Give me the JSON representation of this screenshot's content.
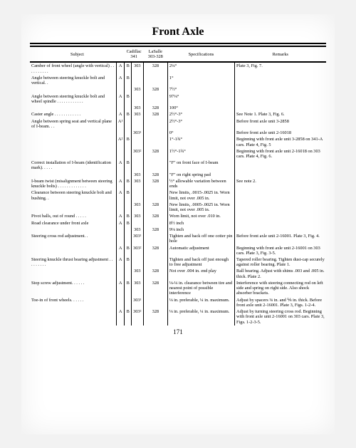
{
  "title": "Front Axle",
  "pagenum": "171",
  "columns": {
    "subject": "Subject",
    "cad": "Cadillac 341",
    "las": "LaSalle 303-328",
    "spec": "Specifications",
    "rem": "Remarks"
  },
  "rows": [
    {
      "subject": "Camber of front wheel (angle with vertical) . . . . . . . . . .",
      "ab": "A",
      "cad_a": "B",
      "cad": "303",
      "las": "328",
      "spec": "2¼°",
      "rem": "Plate 3, Fig. 7."
    },
    {
      "subject": "  Angle between steering knuckle bolt and vertical. .",
      "ab": "A",
      "cad_a": "B",
      "cad": "",
      "las": "",
      "spec": "1°",
      "rem": ""
    },
    {
      "subject": "",
      "ab": "",
      "cad_a": "",
      "cad": "303",
      "las": "328",
      "spec": "7½°",
      "rem": ""
    },
    {
      "subject": "  Angle between steering knuckle bolt and wheel spindle . . . . . . . . . . . .",
      "ab": "A",
      "cad_a": "B",
      "cad": "",
      "las": "",
      "spec": "97¼°",
      "rem": ""
    },
    {
      "subject": "",
      "ab": "",
      "cad_a": "",
      "cad": "303",
      "las": "328",
      "spec": "100°",
      "rem": ""
    },
    {
      "subject": "Caster angle . . . . . . . . . . . .",
      "ab": "A",
      "cad_a": "B",
      "cad": "303",
      "las": "328",
      "spec": "2½°-3°",
      "rem": "See Note 1.  Plate 3, Fig. 6."
    },
    {
      "subject": "  Angle between spring seat and vertical plane of I-beam. . .",
      "ab": "A¹",
      "cad_a": "",
      "cad": "",
      "las": "",
      "spec": "2½°-3°",
      "rem": "Before front axle unit 3-2858"
    },
    {
      "subject": "",
      "ab": "",
      "cad_a": "",
      "cad": "303¹",
      "las": "",
      "spec": "0°",
      "rem": "Before front axle unit 2-16018"
    },
    {
      "subject": "",
      "ab": "A²",
      "cad_a": "B",
      "cad": "",
      "las": "",
      "spec": "1°-1¾°",
      "rem": "Beginning with front axle unit 3-2858 on 341-A cars.  Plate 4, Fig. 5"
    },
    {
      "subject": "",
      "ab": "",
      "cad_a": "",
      "cad": "303²",
      "las": "328",
      "spec": "1½°-1¾°",
      "rem": "Beginning with front axle unit 2-16018 on 303 cars.  Plate 4, Fig. 6."
    },
    {
      "subject": "Correct installation of I-beam (identification mark). . . . .",
      "ab": "A",
      "cad_a": "B",
      "cad": "",
      "las": "",
      "spec": "\"F\" on front face of I-beam",
      "rem": ""
    },
    {
      "subject": "",
      "ab": "",
      "cad_a": "",
      "cad": "303",
      "las": "328",
      "spec": "\"F\" on right spring pad",
      "rem": ""
    },
    {
      "subject": "I-beam twist (misalignment between steering knuckle bolts) . . . . . . . . . . . . .",
      "ab": "A",
      "cad_a": "B",
      "cad": "303",
      "las": "328",
      "spec": "½° allowable variation between ends",
      "rem": "See note 2."
    },
    {
      "subject": "Clearance between steering knuckle bolt and bushing. .",
      "ab": "A",
      "cad_a": "B",
      "cad": "",
      "las": "",
      "spec": "New limits, .0015-.0025 in. Worn limit, not over .005 in.",
      "rem": ""
    },
    {
      "subject": "",
      "ab": "",
      "cad_a": "",
      "cad": "303",
      "las": "328",
      "spec": "New limits, .0005-.0025 in. Worn limit, not over .005 in.",
      "rem": ""
    },
    {
      "subject": "Pivot balls, out of round . . . . .",
      "ab": "A",
      "cad_a": "B",
      "cad": "303",
      "las": "328",
      "spec": "Worn limit, not over .010 in.",
      "rem": ""
    },
    {
      "subject": "Road clearance under front axle",
      "ab": "A",
      "cad_a": "B",
      "cad": "",
      "las": "",
      "spec": "8½ inch",
      "rem": ""
    },
    {
      "subject": "",
      "ab": "",
      "cad_a": "",
      "cad": "303",
      "las": "328",
      "spec": "9⅛ inch",
      "rem": ""
    },
    {
      "subject": "Steering cross rod adjustment. .",
      "ab": "",
      "cad_a": "",
      "cad": "303¹",
      "las": "",
      "spec": "Tighten and back off one cotter pin hole",
      "rem": "Before front axle unit 2-16001.  Plate 3, Fig. 4."
    },
    {
      "subject": "",
      "ab": "A",
      "cad_a": "B",
      "cad": "303²",
      "las": "328",
      "spec": "Automatic adjustment",
      "rem": "Beginning with front axle unit 2-16001 on 303 cars.  Plate 3, Fig. 3-5."
    },
    {
      "subject": "Steering knuckle thrust bearing adjustment . . . . . . . . .",
      "ab": "A",
      "cad_a": "B",
      "cad": "",
      "las": "",
      "spec": "Tighten and back off just enough to free adjustment",
      "rem": "Tapered roller bearing. Tighten dust-cap securely against roller bearing. Plate 1."
    },
    {
      "subject": "",
      "ab": "",
      "cad_a": "",
      "cad": "303",
      "las": "328",
      "spec": "Not over .004 in. end play",
      "rem": "Ball bearing.  Adjust with shims .003 and .005 in. thick.  Plate 2."
    },
    {
      "subject": "Stop screw adjustment. . . . . .",
      "ab": "A",
      "cad_a": "B",
      "cad": "303",
      "las": "328",
      "spec": "⅛-¼ in. clearance between tire and nearest point of possible interference",
      "rem": "Interference with steering connecting rod on left side and spring on right side. Also shock absorber brackets."
    },
    {
      "subject": "Toe-in of front wheels. . . . . .",
      "ab": "",
      "cad_a": "",
      "cad": "303¹",
      "las": "",
      "spec": "⅛ in. preferable, ¼ in. maximum.",
      "rem": "Adjust by spacers ⅛ in. and ⅙ in. thick. Before front axle unit 2-16001.  Plate 3, Figs. 1-2-4."
    },
    {
      "subject": "",
      "ab": "A",
      "cad_a": "B",
      "cad": "303²",
      "las": "328",
      "spec": "⅛ in. preferable, ¼ in. maximum.",
      "rem": "Adjust by turning steering cross rod.  Beginning with front axle unit 2-16001 on 303 cars. Plate 3, Figs. 1-2-3-5."
    }
  ]
}
